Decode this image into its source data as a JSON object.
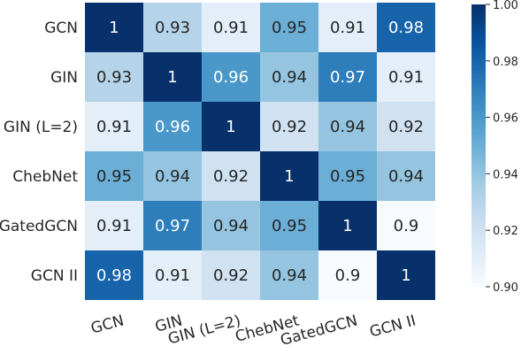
{
  "chart_data": {
    "type": "heatmap",
    "title": "",
    "xlabel": "",
    "ylabel": "",
    "rows": [
      "GCN",
      "GIN",
      "GIN (L=2)",
      "ChebNet",
      "GatedGCN",
      "GCN II"
    ],
    "columns": [
      "GCN",
      "GIN",
      "GIN (L=2)",
      "ChebNet",
      "GatedGCN",
      "GCN II"
    ],
    "values": [
      [
        1,
        0.93,
        0.91,
        0.95,
        0.91,
        0.98
      ],
      [
        0.93,
        1,
        0.96,
        0.94,
        0.97,
        0.91
      ],
      [
        0.91,
        0.96,
        1,
        0.92,
        0.94,
        0.92
      ],
      [
        0.95,
        0.94,
        0.92,
        1,
        0.95,
        0.94
      ],
      [
        0.91,
        0.97,
        0.94,
        0.95,
        1,
        0.9
      ],
      [
        0.98,
        0.91,
        0.92,
        0.94,
        0.9,
        1
      ]
    ],
    "annotations": [
      [
        "1",
        "0.93",
        "0.91",
        "0.95",
        "0.91",
        "0.98"
      ],
      [
        "0.93",
        "1",
        "0.96",
        "0.94",
        "0.97",
        "0.91"
      ],
      [
        "0.91",
        "0.96",
        "1",
        "0.92",
        "0.94",
        "0.92"
      ],
      [
        "0.95",
        "0.94",
        "0.92",
        "1",
        "0.95",
        "0.94"
      ],
      [
        "0.91",
        "0.97",
        "0.94",
        "0.95",
        "1",
        "0.9"
      ],
      [
        "0.98",
        "0.91",
        "0.92",
        "0.94",
        "0.9",
        "1"
      ]
    ],
    "colorbar": {
      "min": 0.9,
      "max": 1.0,
      "ticks": [
        0.9,
        0.92,
        0.94,
        0.96,
        0.98,
        1.0
      ],
      "tick_labels": [
        "0.90",
        "0.92",
        "0.94",
        "0.96",
        "0.98",
        "1.00"
      ],
      "colormap": "Blues",
      "low_color": "#f7fbff",
      "high_color": "#08306b"
    },
    "legend_placement": "right",
    "grid": false
  }
}
